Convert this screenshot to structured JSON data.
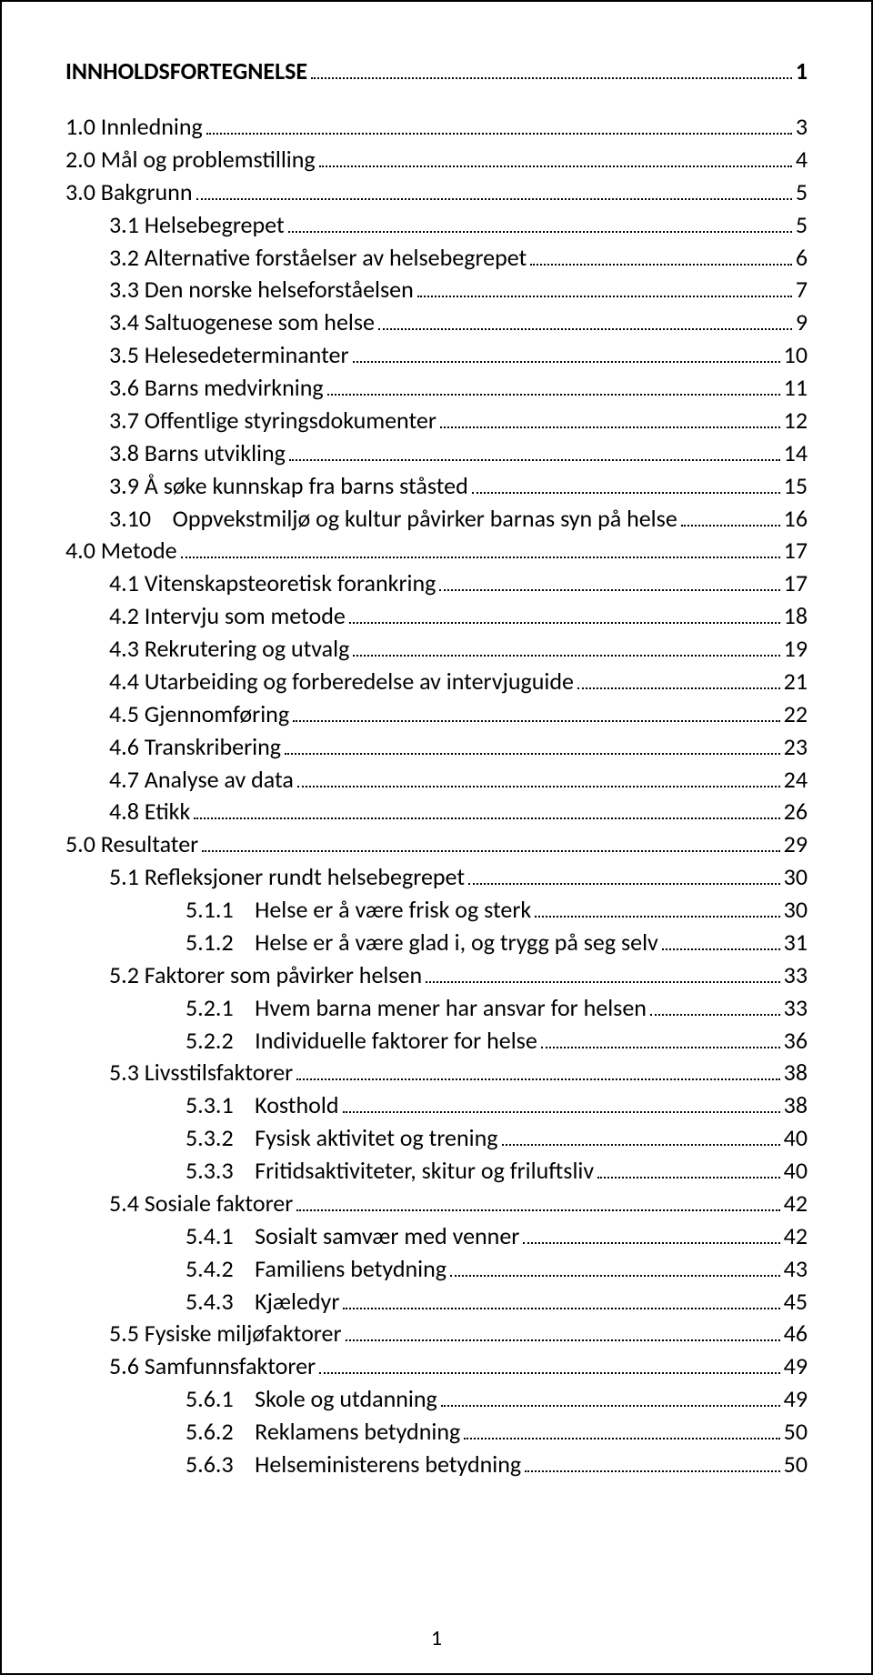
{
  "title": "INNHOLDSFORTEGNELSE",
  "title_page": "1",
  "footer_page": "1",
  "entries": [
    {
      "indent": 0,
      "label": "1.0 Innledning",
      "page": "3"
    },
    {
      "indent": 0,
      "label": "2.0 Mål og problemstilling",
      "page": "4"
    },
    {
      "indent": 0,
      "label": "3.0 Bakgrunn",
      "page": "5"
    },
    {
      "indent": 1,
      "label": "3.1 Helsebegrepet",
      "page": "5"
    },
    {
      "indent": 1,
      "label": "3.2 Alternative forståelser av helsebegrepet",
      "page": "6"
    },
    {
      "indent": 1,
      "label": "3.3 Den norske helseforståelsen",
      "page": "7"
    },
    {
      "indent": 1,
      "label": "3.4 Saltuogenese som helse",
      "page": "9"
    },
    {
      "indent": 1,
      "label": "3.5 Helesedeterminanter",
      "page": "10"
    },
    {
      "indent": 1,
      "label": "3.6 Barns medvirkning",
      "page": "11"
    },
    {
      "indent": 1,
      "label": "3.7 Offentlige styringsdokumenter",
      "page": "12"
    },
    {
      "indent": 1,
      "label": "3.8 Barns utvikling",
      "page": "14"
    },
    {
      "indent": 1,
      "label": "3.9 Å søke kunnskap fra barns ståsted",
      "page": "15"
    },
    {
      "indent": 1,
      "label": "3.10    Oppvekstmiljø og kultur påvirker barnas syn på helse",
      "page": "16"
    },
    {
      "indent": 0,
      "label": "4.0 Metode",
      "page": "17"
    },
    {
      "indent": 1,
      "label": "4.1 Vitenskapsteoretisk forankring",
      "page": "17"
    },
    {
      "indent": 1,
      "label": "4.2 Intervju som metode",
      "page": "18"
    },
    {
      "indent": 1,
      "label": "4.3 Rekrutering og utvalg",
      "page": "19"
    },
    {
      "indent": 1,
      "label": "4.4 Utarbeiding og forberedelse av intervjuguide",
      "page": "21"
    },
    {
      "indent": 1,
      "label": "4.5 Gjennomføring",
      "page": "22"
    },
    {
      "indent": 1,
      "label": "4.6 Transkribering",
      "page": "23"
    },
    {
      "indent": 1,
      "label": "4.7 Analyse av data",
      "page": "24"
    },
    {
      "indent": 1,
      "label": "4.8 Etikk",
      "page": "26"
    },
    {
      "indent": 0,
      "label": "5.0 Resultater",
      "page": "29"
    },
    {
      "indent": 1,
      "label": "5.1 Refleksjoner rundt helsebegrepet",
      "page": "30"
    },
    {
      "indent": 2,
      "label": "5.1.1    Helse er å være frisk og sterk",
      "page": "30"
    },
    {
      "indent": 2,
      "label": "5.1.2    Helse er å være glad i, og trygg på seg selv",
      "page": "31"
    },
    {
      "indent": 1,
      "label": "5.2 Faktorer som påvirker helsen",
      "page": "33"
    },
    {
      "indent": 2,
      "label": "5.2.1    Hvem barna mener har ansvar for helsen",
      "page": "33"
    },
    {
      "indent": 2,
      "label": "5.2.2    Individuelle faktorer for helse",
      "page": "36"
    },
    {
      "indent": 1,
      "label": "5.3 Livsstilsfaktorer",
      "page": "38"
    },
    {
      "indent": 2,
      "label": "5.3.1    Kosthold",
      "page": "38"
    },
    {
      "indent": 2,
      "label": "5.3.2    Fysisk aktivitet og trening",
      "page": "40"
    },
    {
      "indent": 2,
      "label": "5.3.3    Fritidsaktiviteter, skitur og friluftsliv",
      "page": "40"
    },
    {
      "indent": 1,
      "label": "5.4 Sosiale faktorer",
      "page": "42"
    },
    {
      "indent": 2,
      "label": "5.4.1    Sosialt samvær med venner",
      "page": "42"
    },
    {
      "indent": 2,
      "label": "5.4.2    Familiens betydning",
      "page": "43"
    },
    {
      "indent": 2,
      "label": "5.4.3    Kjæledyr",
      "page": "45"
    },
    {
      "indent": 1,
      "label": "5.5 Fysiske miljøfaktorer",
      "page": "46"
    },
    {
      "indent": 1,
      "label": "5.6 Samfunnsfaktorer",
      "page": "49"
    },
    {
      "indent": 2,
      "label": "5.6.1    Skole og utdanning",
      "page": "49"
    },
    {
      "indent": 2,
      "label": "5.6.2    Reklamens betydning",
      "page": "50"
    },
    {
      "indent": 2,
      "label": "5.6.3    Helseministerens betydning",
      "page": "50"
    }
  ]
}
